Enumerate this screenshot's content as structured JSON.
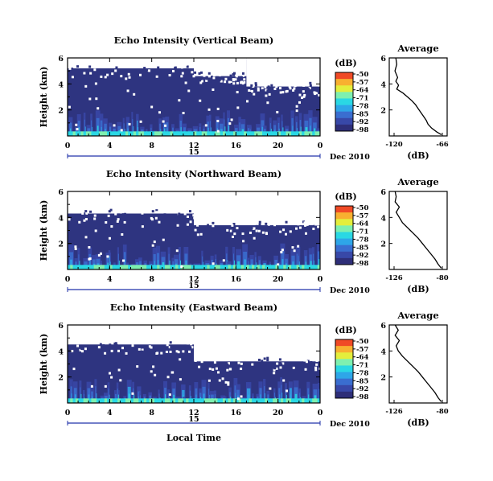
{
  "colors": {
    "background": "#ffffff",
    "axis": "#000000",
    "date_bar": "#2233aa",
    "heatmap_dark": "#2e3480",
    "colormap": [
      "#2e2e78",
      "#3848a8",
      "#3a6ed0",
      "#2ea6e8",
      "#2ad8e4",
      "#7ef0b0",
      "#e4ee3c",
      "#f8b030",
      "#f04a26"
    ]
  },
  "common": {
    "y_axis_label": "Height (km)",
    "x_axis_label": "Local Time",
    "date_day": "15",
    "date_label": "Dec 2010",
    "colorbar_unit": "(dB)",
    "profile_title": "Average",
    "profile_xlabel": "(dB)"
  },
  "chart_data": [
    {
      "type": "heatmap",
      "title": "Echo Intensity (Vertical Beam)",
      "x_range_hours": [
        0,
        24
      ],
      "x_ticks": [
        "0",
        "4",
        "8",
        "12",
        "16",
        "20",
        "0"
      ],
      "y_range_km": [
        0,
        6
      ],
      "y_ticks": [
        "6",
        "4",
        "2"
      ],
      "colorbar": {
        "label": "(dB)",
        "ticks": [
          "-50",
          "-57",
          "-64",
          "-71",
          "-78",
          "-85",
          "-92",
          "-98"
        ]
      },
      "missing_data_above_km": [
        {
          "from_hour": 0,
          "to_hour": 12,
          "height_km": 5.2
        },
        {
          "from_hour": 12,
          "to_hour": 17,
          "height_km": 4.6
        },
        {
          "from_hour": 17,
          "to_hour": 24,
          "height_km": 3.8
        }
      ],
      "profile": {
        "title": "Average",
        "xlabel": "(dB)",
        "x_ticks": [
          "-120",
          "-66"
        ],
        "y_ticks": [
          "6",
          "4",
          "2"
        ],
        "height_km": [
          6.0,
          5.5,
          5.0,
          4.5,
          4.2,
          3.9,
          3.6,
          3.3,
          3.0,
          2.7,
          2.4,
          2.1,
          1.8,
          1.5,
          1.2,
          0.9,
          0.6,
          0.3,
          0.1
        ],
        "db": [
          -118,
          -117,
          -119,
          -116,
          -118,
          -115,
          -117,
          -110,
          -105,
          -100,
          -96,
          -93,
          -90,
          -87,
          -84,
          -82,
          -78,
          -72,
          -67
        ]
      }
    },
    {
      "type": "heatmap",
      "title": "Echo Intensity (Northward Beam)",
      "x_range_hours": [
        0,
        24
      ],
      "x_ticks": [
        "0",
        "4",
        "8",
        "12",
        "16",
        "20",
        "0"
      ],
      "y_range_km": [
        0,
        6
      ],
      "y_ticks": [
        "6",
        "4",
        "2"
      ],
      "colorbar": {
        "label": "(dB)",
        "ticks": [
          "-50",
          "-57",
          "-64",
          "-71",
          "-78",
          "-85",
          "-92",
          "-98"
        ]
      },
      "missing_data_above_km": [
        {
          "from_hour": 0,
          "to_hour": 12,
          "height_km": 4.3
        },
        {
          "from_hour": 12,
          "to_hour": 24,
          "height_km": 3.4
        }
      ],
      "profile": {
        "title": "Average",
        "xlabel": "(dB)",
        "x_ticks": [
          "-126",
          "-80"
        ],
        "y_ticks": [
          "6",
          "4",
          "2"
        ],
        "height_km": [
          6.0,
          5.6,
          5.2,
          4.8,
          4.4,
          4.0,
          3.6,
          3.2,
          2.8,
          2.4,
          2.0,
          1.6,
          1.2,
          0.8,
          0.4,
          0.1
        ],
        "db": [
          -125,
          -124,
          -125,
          -121,
          -124,
          -121,
          -118,
          -113,
          -108,
          -103,
          -99,
          -95,
          -91,
          -87,
          -84,
          -81
        ]
      }
    },
    {
      "type": "heatmap",
      "title": "Echo Intensity (Eastward Beam)",
      "x_range_hours": [
        0,
        24
      ],
      "x_ticks": [
        "0",
        "4",
        "8",
        "12",
        "16",
        "20",
        "0"
      ],
      "y_range_km": [
        0,
        6
      ],
      "y_ticks": [
        "6",
        "4",
        "2"
      ],
      "colorbar": {
        "label": "(dB)",
        "ticks": [
          "-50",
          "-57",
          "-64",
          "-71",
          "-78",
          "-85",
          "-92",
          "-98"
        ]
      },
      "missing_data_above_km": [
        {
          "from_hour": 0,
          "to_hour": 12,
          "height_km": 4.5
        },
        {
          "from_hour": 12,
          "to_hour": 24,
          "height_km": 3.2
        }
      ],
      "profile": {
        "title": "Average",
        "xlabel": "(dB)",
        "x_ticks": [
          "-126",
          "-80"
        ],
        "y_ticks": [
          "6",
          "4",
          "2"
        ],
        "height_km": [
          6.0,
          5.6,
          5.2,
          4.8,
          4.4,
          4.0,
          3.6,
          3.2,
          2.8,
          2.4,
          2.0,
          1.6,
          1.2,
          0.8,
          0.4,
          0.1
        ],
        "db": [
          -125,
          -122,
          -125,
          -121,
          -124,
          -122,
          -118,
          -113,
          -108,
          -103,
          -99,
          -95,
          -91,
          -87,
          -84,
          -81
        ]
      }
    }
  ]
}
